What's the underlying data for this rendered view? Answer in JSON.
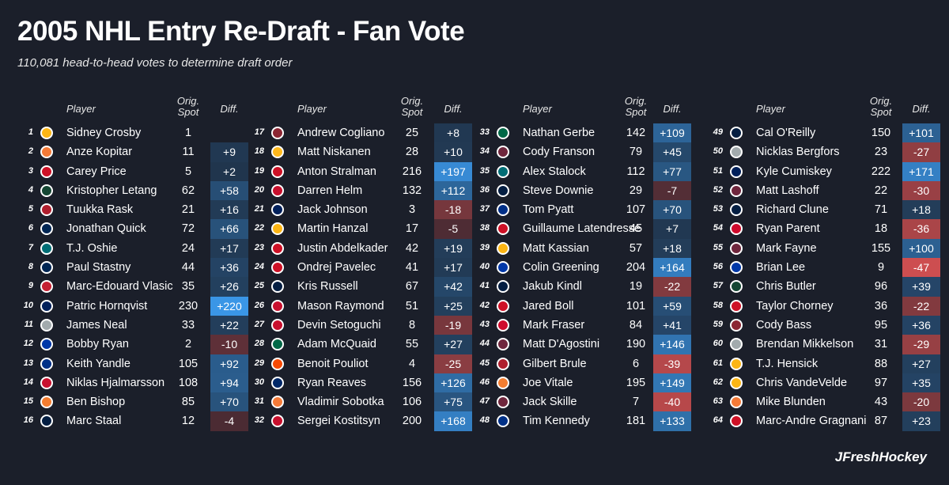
{
  "title": "2005 NHL Entry Re-Draft - Fan Vote",
  "subtitle": "110,081 head-to-head votes to determine draft order",
  "headers": {
    "player": "Player",
    "orig_line1": "Orig.",
    "orig_line2": "Spot",
    "diff": "Diff."
  },
  "credit": "JFreshHockey",
  "colors": {
    "positive": "#2d6fb5",
    "negative": "#d9534f",
    "neutral": "#3a4255",
    "background": "#1b1f2a"
  },
  "columns": [
    [
      {
        "pick": "1",
        "team": "PIT",
        "player": "Sidney Crosby",
        "orig": "1",
        "diff": ""
      },
      {
        "pick": "2",
        "team": "ANA",
        "player": "Anze Kopitar",
        "orig": "11",
        "diff": "+9"
      },
      {
        "pick": "3",
        "team": "CAR",
        "player": "Carey Price",
        "orig": "5",
        "diff": "+2"
      },
      {
        "pick": "4",
        "team": "MIN",
        "player": "Kristopher Letang",
        "orig": "62",
        "diff": "+58"
      },
      {
        "pick": "5",
        "team": "MTL",
        "player": "Tuukka Rask",
        "orig": "21",
        "diff": "+16"
      },
      {
        "pick": "6",
        "team": "CBJ",
        "player": "Jonathan Quick",
        "orig": "72",
        "diff": "+66"
      },
      {
        "pick": "7",
        "team": "SJS",
        "player": "T.J. Oshie",
        "orig": "24",
        "diff": "+17"
      },
      {
        "pick": "8",
        "team": "CBJ",
        "player": "Paul Stastny",
        "orig": "44",
        "diff": "+36"
      },
      {
        "pick": "9",
        "team": "OTT",
        "player": "Marc-Edouard Vlasic",
        "orig": "35",
        "diff": "+26"
      },
      {
        "pick": "10",
        "team": "VAN",
        "player": "Patric Hornqvist",
        "orig": "230",
        "diff": "+220"
      },
      {
        "pick": "11",
        "team": "LAK",
        "player": "James Neal",
        "orig": "33",
        "diff": "+22"
      },
      {
        "pick": "12",
        "team": "NYR",
        "player": "Bobby Ryan",
        "orig": "2",
        "diff": "-10"
      },
      {
        "pick": "13",
        "team": "BUF",
        "player": "Keith Yandle",
        "orig": "105",
        "diff": "+92"
      },
      {
        "pick": "14",
        "team": "WSH",
        "player": "Niklas Hjalmarsson",
        "orig": "108",
        "diff": "+94"
      },
      {
        "pick": "15",
        "team": "NYI",
        "player": "Ben Bishop",
        "orig": "85",
        "diff": "+70"
      },
      {
        "pick": "16",
        "team": "WPG",
        "player": "Marc Staal",
        "orig": "12",
        "diff": "-4"
      }
    ],
    [
      {
        "pick": "17",
        "team": "ARI",
        "player": "Andrew Cogliano",
        "orig": "25",
        "diff": "+8"
      },
      {
        "pick": "18",
        "team": "NSH",
        "player": "Matt Niskanen",
        "orig": "28",
        "diff": "+10"
      },
      {
        "pick": "19",
        "team": "DET",
        "player": "Anton Stralman",
        "orig": "216",
        "diff": "+197"
      },
      {
        "pick": "20",
        "team": "FLA",
        "player": "Darren Helm",
        "orig": "132",
        "diff": "+112"
      },
      {
        "pick": "21",
        "team": "TOR",
        "player": "Jack Johnson",
        "orig": "3",
        "diff": "-18"
      },
      {
        "pick": "22",
        "team": "BOS",
        "player": "Martin Hanzal",
        "orig": "17",
        "diff": "-5"
      },
      {
        "pick": "23",
        "team": "NJD",
        "player": "Justin Abdelkader",
        "orig": "42",
        "diff": "+19"
      },
      {
        "pick": "24",
        "team": "NJD",
        "player": "Ondrej Pavelec",
        "orig": "41",
        "diff": "+17"
      },
      {
        "pick": "25",
        "team": "EDM",
        "player": "Kris Russell",
        "orig": "67",
        "diff": "+42"
      },
      {
        "pick": "26",
        "team": "CGY",
        "player": "Mason Raymond",
        "orig": "51",
        "diff": "+25"
      },
      {
        "pick": "27",
        "team": "WSH",
        "player": "Devin Setoguchi",
        "orig": "8",
        "diff": "-19"
      },
      {
        "pick": "28",
        "team": "DAL",
        "player": "Adam McQuaid",
        "orig": "55",
        "diff": "+27"
      },
      {
        "pick": "29",
        "team": "PHI",
        "player": "Benoit Pouliot",
        "orig": "4",
        "diff": "-25"
      },
      {
        "pick": "30",
        "team": "TBL",
        "player": "Ryan Reaves",
        "orig": "156",
        "diff": "+126"
      },
      {
        "pick": "31",
        "team": "ANA",
        "player": "Vladimir Sobotka",
        "orig": "106",
        "diff": "+75"
      },
      {
        "pick": "32",
        "team": "FLA",
        "player": "Sergei Kostitsyn",
        "orig": "200",
        "diff": "+168"
      }
    ],
    [
      {
        "pick": "33",
        "team": "DAL",
        "player": "Nathan Gerbe",
        "orig": "142",
        "diff": "+109"
      },
      {
        "pick": "34",
        "team": "COL",
        "player": "Cody Franson",
        "orig": "79",
        "diff": "+45"
      },
      {
        "pick": "35",
        "team": "SJS",
        "player": "Alex Stalock",
        "orig": "112",
        "diff": "+77"
      },
      {
        "pick": "36",
        "team": "EDM",
        "player": "Steve Downie",
        "orig": "29",
        "diff": "-7"
      },
      {
        "pick": "37",
        "team": "STL",
        "player": "Tom Pyatt",
        "orig": "107",
        "diff": "+70"
      },
      {
        "pick": "38",
        "team": "NJD",
        "player": "Guillaume Latendresse",
        "orig": "45",
        "diff": "+7"
      },
      {
        "pick": "39",
        "team": "BOS",
        "player": "Matt Kassian",
        "orig": "57",
        "diff": "+18"
      },
      {
        "pick": "40",
        "team": "NYR",
        "player": "Colin Greening",
        "orig": "204",
        "diff": "+164"
      },
      {
        "pick": "41",
        "team": "WPG",
        "player": "Jakub Kindl",
        "orig": "19",
        "diff": "-22"
      },
      {
        "pick": "42",
        "team": "DET",
        "player": "Jared Boll",
        "orig": "101",
        "diff": "+59"
      },
      {
        "pick": "43",
        "team": "CHI",
        "player": "Mark Fraser",
        "orig": "84",
        "diff": "+41"
      },
      {
        "pick": "44",
        "team": "COL",
        "player": "Matt D'Agostini",
        "orig": "190",
        "diff": "+146"
      },
      {
        "pick": "45",
        "team": "MTL",
        "player": "Gilbert Brule",
        "orig": "6",
        "diff": "-39"
      },
      {
        "pick": "46",
        "team": "NYI",
        "player": "Joe Vitale",
        "orig": "195",
        "diff": "+149"
      },
      {
        "pick": "47",
        "team": "COL",
        "player": "Jack Skille",
        "orig": "7",
        "diff": "-40"
      },
      {
        "pick": "48",
        "team": "BUF",
        "player": "Tim Kennedy",
        "orig": "181",
        "diff": "+133"
      }
    ],
    [
      {
        "pick": "49",
        "team": "WPG",
        "player": "Cal O'Reilly",
        "orig": "150",
        "diff": "+101"
      },
      {
        "pick": "50",
        "team": "LAK",
        "player": "Nicklas Bergfors",
        "orig": "23",
        "diff": "-27"
      },
      {
        "pick": "51",
        "team": "VAN",
        "player": "Kyle Cumiskey",
        "orig": "222",
        "diff": "+171"
      },
      {
        "pick": "52",
        "team": "COL",
        "player": "Matt Lashoff",
        "orig": "22",
        "diff": "-30"
      },
      {
        "pick": "53",
        "team": "WPG",
        "player": "Richard Clune",
        "orig": "71",
        "diff": "+18"
      },
      {
        "pick": "54",
        "team": "CHI",
        "player": "Ryan Parent",
        "orig": "18",
        "diff": "-36"
      },
      {
        "pick": "55",
        "team": "COL",
        "player": "Mark Fayne",
        "orig": "155",
        "diff": "+100"
      },
      {
        "pick": "56",
        "team": "NYR",
        "player": "Brian Lee",
        "orig": "9",
        "diff": "-47"
      },
      {
        "pick": "57",
        "team": "MIN",
        "player": "Chris Butler",
        "orig": "96",
        "diff": "+39"
      },
      {
        "pick": "58",
        "team": "CAR",
        "player": "Taylor Chorney",
        "orig": "36",
        "diff": "-22"
      },
      {
        "pick": "59",
        "team": "ARI",
        "player": "Cody Bass",
        "orig": "95",
        "diff": "+36"
      },
      {
        "pick": "60",
        "team": "LAK",
        "player": "Brendan Mikkelson",
        "orig": "31",
        "diff": "-29"
      },
      {
        "pick": "61",
        "team": "PIT",
        "player": "T.J. Hensick",
        "orig": "88",
        "diff": "+27"
      },
      {
        "pick": "62",
        "team": "PIT",
        "player": "Chris VandeVelde",
        "orig": "97",
        "diff": "+35"
      },
      {
        "pick": "63",
        "team": "ANA",
        "player": "Mike Blunden",
        "orig": "43",
        "diff": "-20"
      },
      {
        "pick": "64",
        "team": "CAR",
        "player": "Marc-Andre Gragnani",
        "orig": "87",
        "diff": "+23"
      }
    ]
  ],
  "team_colors": {
    "PIT": "#fcb514",
    "ANA": "#f47a38",
    "CAR": "#ce1126",
    "MIN": "#154734",
    "MTL": "#af1e2d",
    "CBJ": "#002654",
    "SJS": "#006d75",
    "OTT": "#c52032",
    "VAN": "#00205b",
    "LAK": "#a2aaad",
    "NYR": "#0038a8",
    "BUF": "#003087",
    "WSH": "#c8102e",
    "NYI": "#f47d30",
    "WPG": "#041e42",
    "ARI": "#8c2633",
    "NSH": "#ffb81c",
    "DET": "#ce1126",
    "FLA": "#c8102e",
    "TOR": "#00205b",
    "BOS": "#fcb514",
    "NJD": "#ce1126",
    "EDM": "#041e42",
    "CGY": "#c8102e",
    "DAL": "#006847",
    "PHI": "#f74902",
    "TBL": "#002868",
    "COL": "#6f263d",
    "STL": "#002f87",
    "CHI": "#cf0a2c"
  }
}
